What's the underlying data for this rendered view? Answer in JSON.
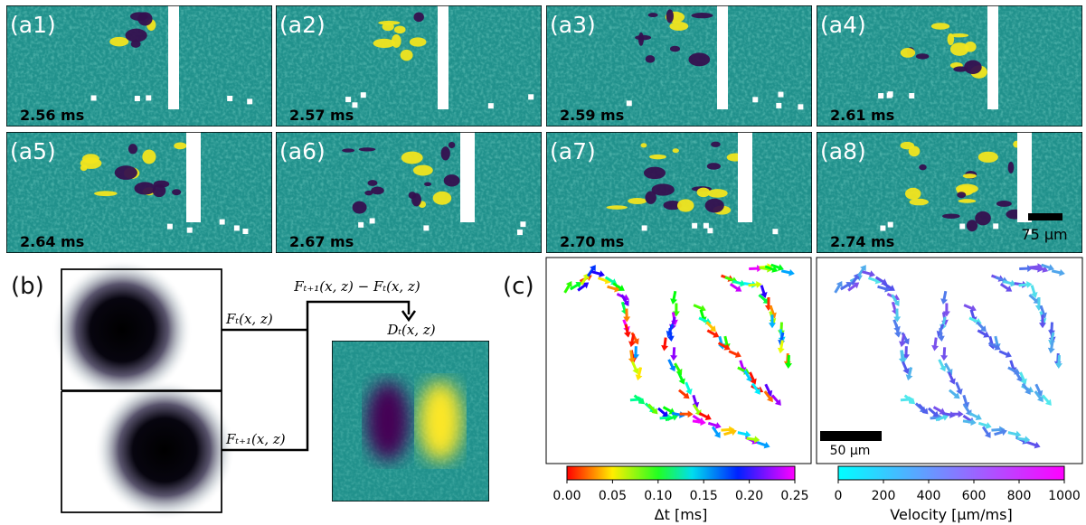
{
  "panels_a": [
    {
      "label": "(a1)",
      "time": "2.56 ms"
    },
    {
      "label": "(a2)",
      "time": "2.57 ms"
    },
    {
      "label": "(a3)",
      "time": "2.59 ms"
    },
    {
      "label": "(a4)",
      "time": "2.61 ms"
    },
    {
      "label": "(a5)",
      "time": "2.64 ms"
    },
    {
      "label": "(a6)",
      "time": "2.67 ms"
    },
    {
      "label": "(a7)",
      "time": "2.70 ms"
    },
    {
      "label": "(a8)",
      "time": "2.74 ms"
    }
  ],
  "scale_a": "75 µm",
  "panel_b": {
    "label": "(b)",
    "f_t": "Fₜ(x, z)",
    "f_t1": "Fₜ₊₁(x, z)",
    "difference": "Fₜ₊₁(x, z) − Fₜ(x, z)",
    "d_t": "Dₜ(x, z)"
  },
  "panel_c": {
    "label": "(c)",
    "scale": "50 µm",
    "colorbar_dt": {
      "ticks": [
        "0.00",
        "0.05",
        "0.10",
        "0.15",
        "0.20",
        "0.25"
      ],
      "title": "Δt [ms]"
    },
    "colorbar_v": {
      "ticks": [
        "0",
        "200",
        "400",
        "600",
        "800",
        "1000"
      ],
      "title": "Velocity [µm/ms]"
    }
  }
}
